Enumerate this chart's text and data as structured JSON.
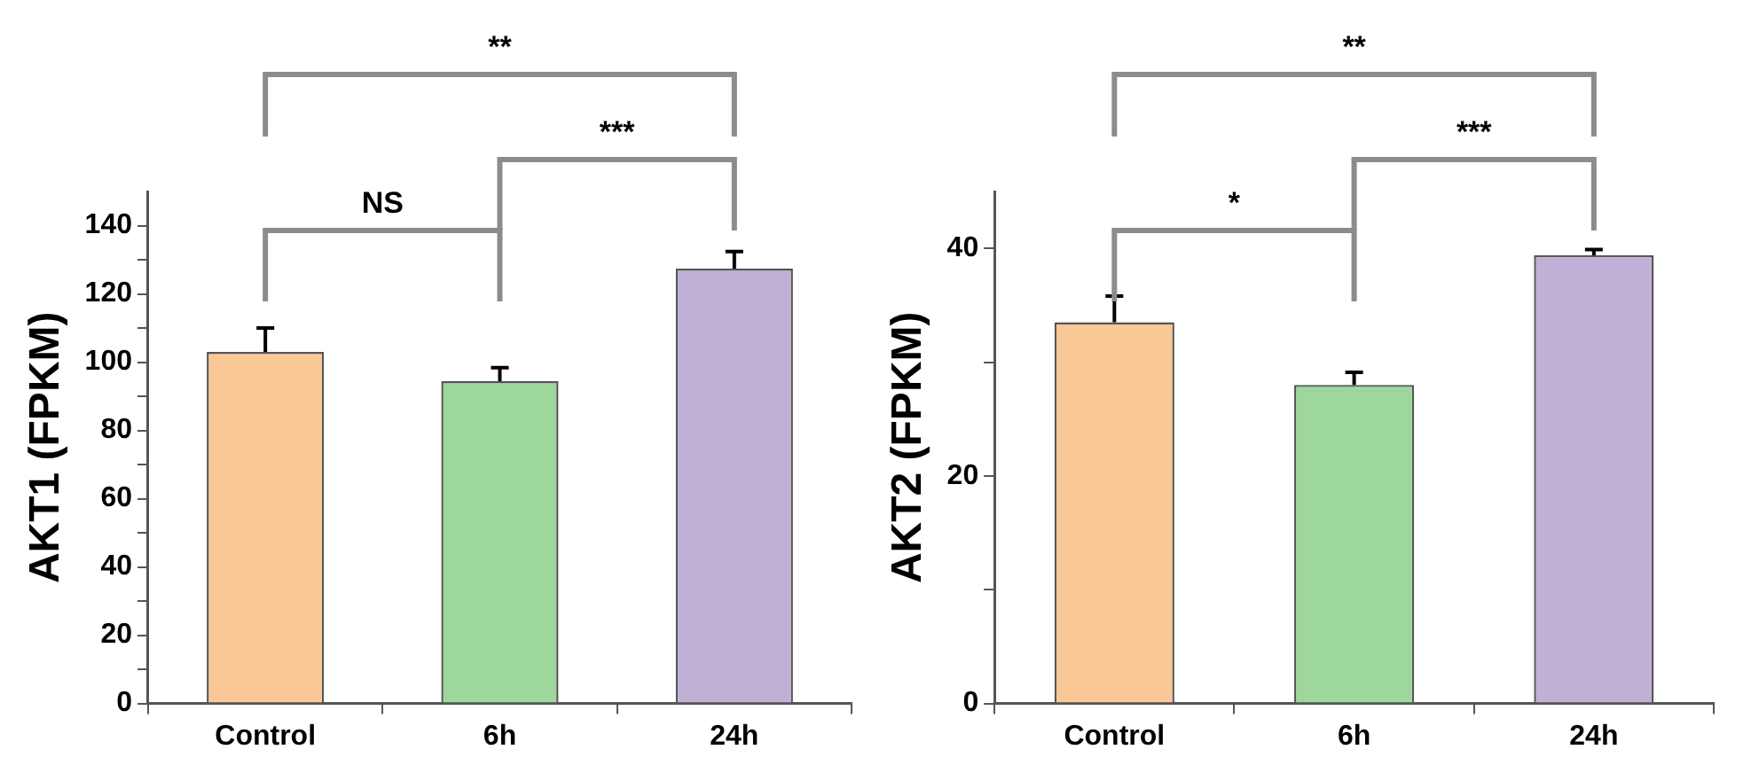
{
  "chart_data": [
    {
      "type": "bar",
      "ylabel": "AKT1 (FPKM)",
      "categories": [
        "Control",
        "6h",
        "24h"
      ],
      "values": [
        103,
        94.4,
        127.4
      ],
      "colors": [
        "#f9c896",
        "#9dd79b",
        "#c0b0d6"
      ],
      "errors": [
        7,
        4,
        5
      ],
      "ylim": [
        0,
        150
      ],
      "yticks": [
        0,
        {
          "value": 10,
          "label": null
        },
        20,
        {
          "value": 30,
          "label": null
        },
        40,
        {
          "value": 50,
          "label": null
        },
        60,
        {
          "value": 70,
          "label": null
        },
        80,
        {
          "value": 90,
          "label": null
        },
        100,
        {
          "value": 110,
          "label": null
        },
        120,
        {
          "value": 130,
          "label": null
        },
        140
      ],
      "grid": false,
      "legend": false,
      "annotations": [
        "NS",
        "***",
        "**"
      ]
    },
    {
      "type": "bar",
      "ylabel": "AKT2 (FPKM)",
      "categories": [
        "Control",
        "6h",
        "24h"
      ],
      "values": [
        33.5,
        28,
        39.4
      ],
      "colors": [
        "#f9c896",
        "#9dd79b",
        "#c0b0d6"
      ],
      "errors": [
        2.3,
        1.1,
        0.5
      ],
      "ylim": [
        0,
        45
      ],
      "yticks": [
        0,
        {
          "value": 10,
          "label": null
        },
        20,
        {
          "value": 30,
          "label": null
        },
        40
      ],
      "grid": false,
      "legend": false,
      "annotations": [
        "*",
        "***",
        "**"
      ]
    }
  ]
}
